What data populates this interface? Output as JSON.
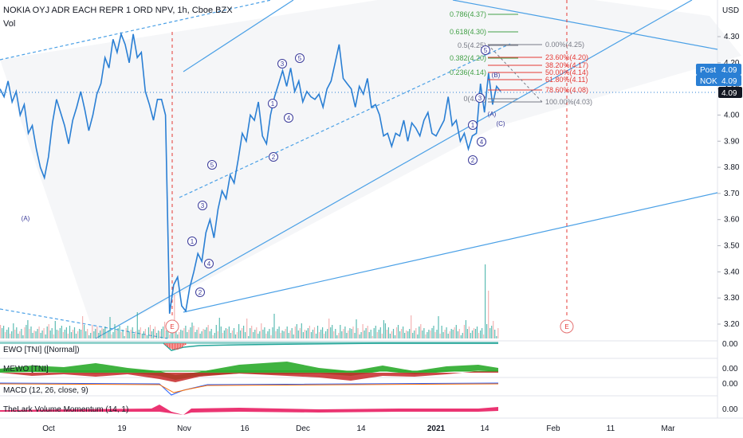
{
  "header": {
    "title": "NOKIA OYJ ADR EACH REPR 1 ORD NPV, 1h, Cboe BZX",
    "vol_label": "Vol",
    "currency": "USD"
  },
  "colors": {
    "price_line": "#2a7fd4",
    "trend_line": "#4aa0e6",
    "fib_green": "#43a047",
    "fib_red": "#e53935",
    "fib_gray": "#787b86",
    "wave_label": "#3b3b9a",
    "post_badge": "#2a7fd4",
    "last_badge": "#131722",
    "ewo_green": "#26a69a",
    "ewo_red": "#ef5350",
    "mewo_green": "#1fa61f",
    "mewo_red": "#c62828",
    "lark": "#e91e63"
  },
  "price_axis": {
    "ticks": [
      "4.30",
      "4.20",
      "4.10",
      "4.00",
      "3.90",
      "3.80",
      "3.70",
      "3.60",
      "3.50",
      "3.40",
      "3.30",
      "3.20"
    ],
    "post_label": "Post",
    "post_value": "4.09",
    "nok_label": "NOK",
    "nok_value": "4.09",
    "last_value": "4.09"
  },
  "time_axis": {
    "ticks": [
      "Oct",
      "19",
      "Nov",
      "16",
      "Dec",
      "14",
      "2021",
      "14",
      "Feb",
      "11",
      "Mar"
    ]
  },
  "fib_levels": {
    "upper": [
      {
        "label": "0.786(4.37)",
        "value": 4.37,
        "color": "green"
      },
      {
        "label": "0.618(4.30)",
        "value": 4.3,
        "color": "green"
      },
      {
        "label": "0.5(4.25)",
        "value": 4.25,
        "color": "gray"
      },
      {
        "label": "0.382(4.20)",
        "value": 4.2,
        "color": "green"
      },
      {
        "label": "0.236(4.14)",
        "value": 4.14,
        "color": "green"
      },
      {
        "label": "0(4.03)",
        "value": 4.03,
        "color": "gray"
      }
    ],
    "retracement": [
      {
        "label": "0.00%(4.25)",
        "value": 4.25,
        "color": "gray"
      },
      {
        "label": "23.60%(4.20)",
        "value": 4.2,
        "color": "red"
      },
      {
        "label": "38.20%(4.17)",
        "value": 4.17,
        "color": "red"
      },
      {
        "label": "50.00%(4.14)",
        "value": 4.14,
        "color": "red"
      },
      {
        "label": "61.80%(4.11)",
        "value": 4.11,
        "color": "red"
      },
      {
        "label": "78.60%(4.08)",
        "value": 4.08,
        "color": "red"
      },
      {
        "label": "100.00%(4.03)",
        "value": 4.03,
        "color": "gray"
      }
    ]
  },
  "wave_labels": {
    "one": "1",
    "two": "2",
    "three": "3",
    "four": "4",
    "five": "5",
    "a": "(A)",
    "b": "(B)",
    "c": "(C)",
    "e": "E"
  },
  "indicators": [
    {
      "name": "EWO [TNI] ([Normal])",
      "value": "0.00"
    },
    {
      "name": "MEWO [TNI]",
      "value": "0.00"
    },
    {
      "name": "MACD (12, 26, close, 9)",
      "value": "0.00"
    },
    {
      "name": "TheLark Volume Momentum (14, 1)",
      "value": "0.00"
    }
  ],
  "chart_data": {
    "type": "line",
    "title": "NOKIA OYJ ADR EACH REPR 1 ORD NPV, 1h, Cboe BZX",
    "xlabel": "",
    "ylabel": "",
    "ylim": [
      3.16,
      4.38
    ],
    "x_ticks": [
      "Oct",
      "19",
      "Nov",
      "16",
      "Dec",
      "14",
      "2021",
      "14",
      "Feb",
      "11",
      "Mar"
    ],
    "series": [
      {
        "values": [
          4.1,
          4.07,
          4.13,
          4.05,
          4.09,
          4.0,
          4.04,
          3.93,
          3.96,
          3.87,
          3.8,
          3.76,
          3.84,
          3.97,
          4.06,
          4.01,
          3.96,
          3.89,
          3.98,
          4.03,
          4.09,
          4.02,
          3.94,
          4.0,
          4.08,
          4.12,
          4.22,
          4.18,
          4.29,
          4.24,
          4.31,
          4.27,
          4.2,
          4.31,
          4.22,
          4.24,
          4.09,
          4.04,
          3.98,
          4.06,
          4.06,
          4.0,
          3.24,
          3.35,
          3.38,
          3.27,
          3.25,
          3.34,
          3.4,
          3.47,
          3.44,
          3.55,
          3.6,
          3.53,
          3.64,
          3.71,
          3.68,
          3.77,
          3.74,
          3.83,
          3.93,
          3.9,
          4.0,
          3.98,
          4.05,
          3.92,
          3.89,
          4.0,
          4.07,
          4.12,
          4.17,
          4.11,
          4.18,
          4.09,
          4.13,
          4.05,
          4.09,
          4.07,
          4.06,
          4.08,
          4.03,
          4.1,
          4.13,
          4.2,
          4.27,
          4.14,
          4.12,
          4.1,
          4.03,
          4.11,
          4.08,
          4.14,
          4.03,
          4.04,
          4.0,
          3.92,
          3.93,
          3.88,
          3.93,
          3.92,
          3.98,
          3.9,
          3.97,
          3.95,
          3.92,
          3.98,
          4.01,
          3.93,
          3.92,
          3.95,
          3.98,
          4.07,
          3.96,
          3.98,
          3.9,
          3.93,
          3.87,
          3.92,
          3.93,
          4.12,
          4.01,
          4.16,
          4.04,
          4.11,
          4.09
        ],
        "time_span": "late Sep 2020 to mid Jan 2021, hourly"
      }
    ],
    "volume_spike_note": null
  }
}
